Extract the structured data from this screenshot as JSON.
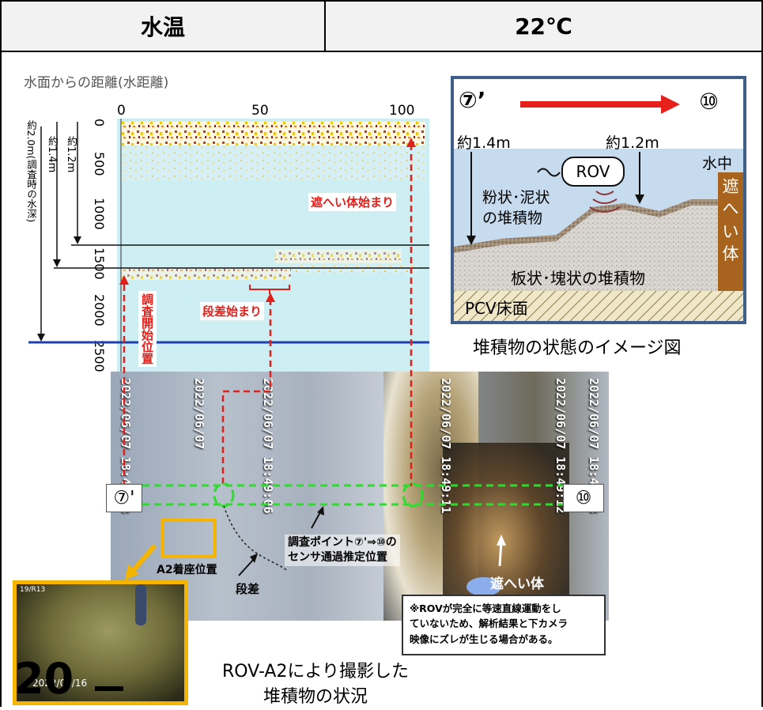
{
  "header": {
    "left_label": "水温",
    "right_value": "22℃"
  },
  "chart": {
    "title": "水面からの距離(水距離)",
    "x_ticks": [
      "0",
      "50",
      "100"
    ],
    "y_ticks": [
      "0",
      "500",
      "1000",
      "1500",
      "2000",
      "2500"
    ],
    "depth_labels": {
      "d20": "約2.0m(調査時の水深)",
      "d14": "約1.4m",
      "d12": "約1.2m"
    },
    "annotations": {
      "shield_start": "遮へい体始まり",
      "step_start": "段差始まり",
      "survey_start": "調査開始位置"
    }
  },
  "chart_data": {
    "type": "heatmap",
    "title": "水面からの距離(水距離)",
    "x_ticks": [
      0,
      50,
      100
    ],
    "y_ticks": [
      0,
      500,
      1000,
      1500,
      2000,
      2500
    ],
    "xlim": [
      0,
      115
    ],
    "ylim": [
      0,
      2700
    ],
    "y_inverted": true,
    "reference_depths_m": [
      2.0,
      1.4,
      1.2
    ]
  },
  "diagram": {
    "start_marker": "⑦’",
    "end_marker": "⑩",
    "depth_left": "約1.4m",
    "depth_right": "約1.2m",
    "underwater": "水中",
    "rov": "ROV",
    "powder_l1": "粉状･泥状",
    "powder_l2": "の堆積物",
    "plate": "板状･塊状の堆積物",
    "floor": "PCV床面",
    "shield_chars": [
      "遮",
      "へ",
      "い",
      "体"
    ],
    "caption": "堆積物の状態のイメージ図"
  },
  "photo": {
    "timestamps": [
      "2022/06/07 18:48:53",
      "2022/06/07",
      "2022/06/07 18:49:06",
      "2022/06/07 18:49:11",
      "2022/06/07 18:49:12",
      "2022/06/07 18:49:13"
    ],
    "marker_start": "⑦'",
    "marker_end": "⑩",
    "sensor_l1": "調査ポイント⑦'⇒⑩の",
    "sensor_l2": "センサ通過推定位置",
    "a2": "A2着座位置",
    "step": "段差",
    "shield": "遮へい体",
    "note_l1": "※ROVが完全に等速直線運動をし",
    "note_l2": "ていないため、解析結果と下カメラ",
    "note_l3": "映像にズレが生じる場合がある。"
  },
  "thumb": {
    "top_text": "19/R13",
    "date": "2022/03/16"
  },
  "caption2": {
    "l1": "ROV-A2により撮影した",
    "l2": "堆積物の状況"
  },
  "page_number": "20"
}
